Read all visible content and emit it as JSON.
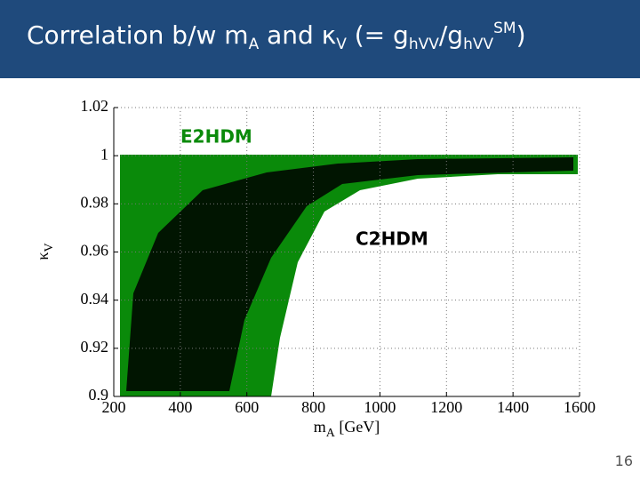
{
  "header": {
    "title": [
      {
        "text": "Correlation b/w m"
      },
      {
        "text": "A",
        "style": "sub"
      },
      {
        "text": " and κ"
      },
      {
        "text": "V",
        "style": "sub"
      },
      {
        "text": " (= g"
      },
      {
        "text": "hVV",
        "style": "sub"
      },
      {
        "text": "/g"
      },
      {
        "text": "hVV",
        "style": "sub"
      },
      {
        "text": "SM",
        "style": "sup"
      },
      {
        "text": ")"
      }
    ]
  },
  "chart": {
    "xlim": [
      200,
      1600
    ],
    "ylim": [
      0.9,
      1.02
    ],
    "xticks": [
      200,
      400,
      600,
      800,
      1000,
      1200,
      1400,
      1600
    ],
    "yticks": [
      0.9,
      0.92,
      0.94,
      0.96,
      0.98,
      1,
      1.02
    ],
    "grid": true,
    "xlabel": [
      {
        "text": "m"
      },
      {
        "text": "A",
        "style": "sub"
      },
      {
        "text": " [GeV]"
      }
    ],
    "ylabel": [
      {
        "text": "κ"
      },
      {
        "text": "V",
        "style": "sub"
      }
    ],
    "annotations": [
      {
        "text": "E2HDM",
        "color": "#0a8a0a"
      },
      {
        "text": "C2HDM",
        "color": "#000000"
      }
    ]
  },
  "page_number": 16
}
